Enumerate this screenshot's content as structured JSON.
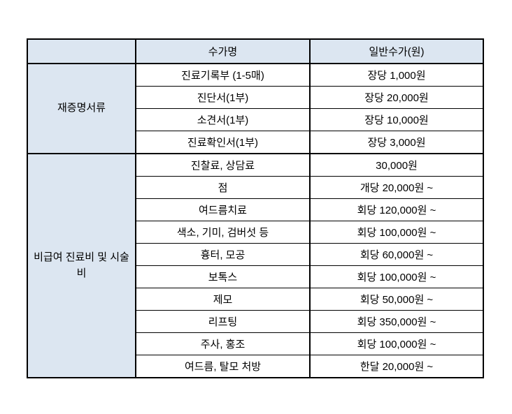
{
  "table": {
    "header": {
      "group_col": "",
      "name_col": "수가명",
      "price_col": "일반수가(원)"
    },
    "groups": [
      {
        "label": "재증명서류",
        "rows": [
          {
            "name": "진료기록부 (1-5매)",
            "price": "장당 1,000원"
          },
          {
            "name": "진단서(1부)",
            "price": "장당 20,000원"
          },
          {
            "name": "소견서(1부)",
            "price": "장당 10,000원"
          },
          {
            "name": "진료확인서(1부)",
            "price": "장당 3,000원"
          }
        ]
      },
      {
        "label": "비급여 진료비 및 시술비",
        "rows": [
          {
            "name": "진찰료, 상담료",
            "price": "30,000원"
          },
          {
            "name": "점",
            "price": "개당 20,000원 ~"
          },
          {
            "name": "여드름치료",
            "price": "회당 120,000원 ~"
          },
          {
            "name": "색소, 기미, 검버섯 등",
            "price": "회당 100,000원 ~"
          },
          {
            "name": "흉터, 모공",
            "price": "회당 60,000원 ~"
          },
          {
            "name": "보톡스",
            "price": "회당 100,000원 ~"
          },
          {
            "name": "제모",
            "price": "회당 50,000원 ~"
          },
          {
            "name": "리프팅",
            "price": "회당 350,000원 ~"
          },
          {
            "name": "주사, 홍조",
            "price": "회당 100,000원 ~"
          },
          {
            "name": "여드름, 탈모 처방",
            "price": "한달 20,000원 ~"
          }
        ]
      }
    ],
    "colors": {
      "header_bg": "#dce6f1",
      "group_bg": "#dce6f1",
      "border": "#000000",
      "row_bg": "#ffffff",
      "text": "#000000"
    }
  }
}
